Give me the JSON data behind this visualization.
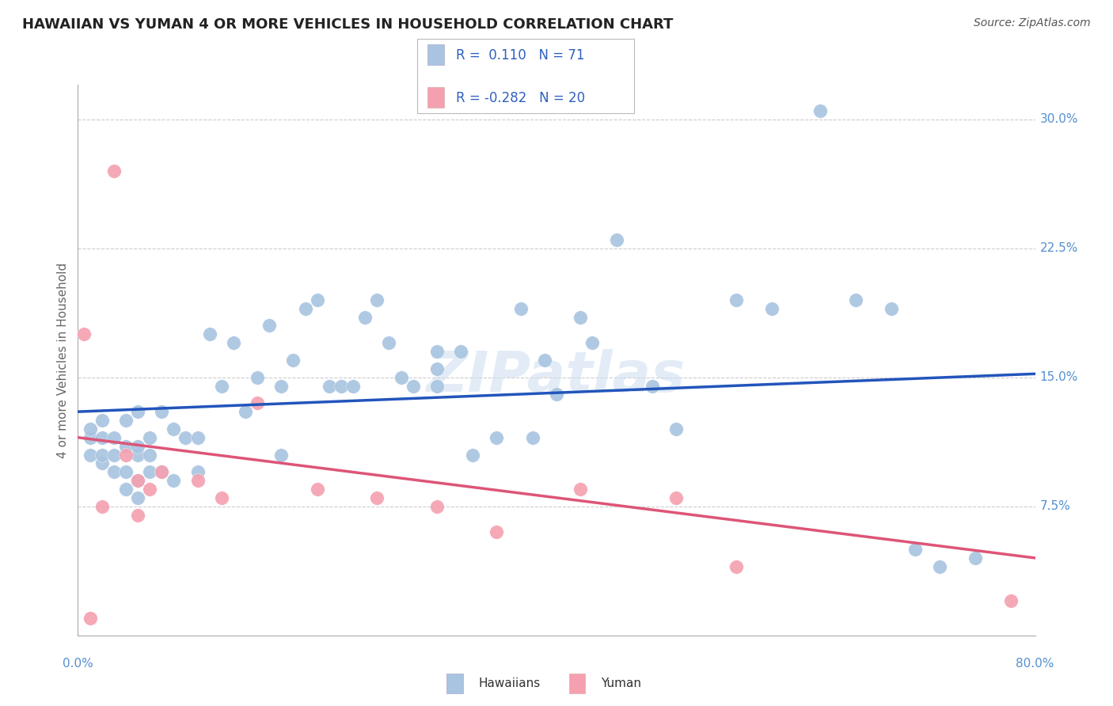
{
  "title": "HAWAIIAN VS YUMAN 4 OR MORE VEHICLES IN HOUSEHOLD CORRELATION CHART",
  "source": "Source: ZipAtlas.com",
  "ylabel": "4 or more Vehicles in Household",
  "ytick_values": [
    0.0,
    7.5,
    15.0,
    22.5,
    30.0
  ],
  "xlim": [
    0.0,
    80.0
  ],
  "ylim": [
    0.0,
    32.0
  ],
  "hawaiian_R": "0.110",
  "hawaiian_N": "71",
  "yuman_R": "-0.282",
  "yuman_N": "20",
  "hawaiian_color": "#a8c4e0",
  "yuman_color": "#f4a0b0",
  "trendline_hawaiian_color": "#2255bb",
  "trendline_yuman_color": "#dd5577",
  "watermark": "ZIPatlas",
  "hawaiian_x": [
    1,
    1,
    1,
    2,
    2,
    2,
    2,
    3,
    3,
    3,
    4,
    4,
    4,
    4,
    5,
    5,
    5,
    5,
    5,
    6,
    6,
    6,
    7,
    7,
    8,
    8,
    9,
    10,
    10,
    11,
    12,
    13,
    14,
    15,
    16,
    17,
    17,
    18,
    19,
    20,
    21,
    22,
    23,
    24,
    25,
    26,
    27,
    28,
    30,
    30,
    30,
    32,
    33,
    35,
    37,
    38,
    39,
    40,
    42,
    43,
    45,
    48,
    50,
    55,
    58,
    62,
    65,
    68,
    70,
    72,
    75
  ],
  "hawaiian_y": [
    10.5,
    11.5,
    12.0,
    10.0,
    10.5,
    11.5,
    12.5,
    9.5,
    10.5,
    11.5,
    8.5,
    9.5,
    11.0,
    12.5,
    8.0,
    9.0,
    10.5,
    11.0,
    13.0,
    9.5,
    10.5,
    11.5,
    9.5,
    13.0,
    9.0,
    12.0,
    11.5,
    9.5,
    11.5,
    17.5,
    14.5,
    17.0,
    13.0,
    15.0,
    18.0,
    10.5,
    14.5,
    16.0,
    19.0,
    19.5,
    14.5,
    14.5,
    14.5,
    18.5,
    19.5,
    17.0,
    15.0,
    14.5,
    14.5,
    15.5,
    16.5,
    16.5,
    10.5,
    11.5,
    19.0,
    11.5,
    16.0,
    14.0,
    18.5,
    17.0,
    23.0,
    14.5,
    12.0,
    19.5,
    19.0,
    30.5,
    19.5,
    19.0,
    5.0,
    4.0,
    4.5
  ],
  "yuman_x": [
    0.5,
    1,
    2,
    3,
    4,
    5,
    5,
    6,
    7,
    10,
    12,
    15,
    20,
    25,
    30,
    35,
    42,
    50,
    55,
    78
  ],
  "yuman_y": [
    17.5,
    1.0,
    7.5,
    27.0,
    10.5,
    9.0,
    7.0,
    8.5,
    9.5,
    9.0,
    8.0,
    13.5,
    8.5,
    8.0,
    7.5,
    6.0,
    8.5,
    8.0,
    4.0,
    2.0
  ],
  "trendline_h_x0": 0,
  "trendline_h_y0": 13.0,
  "trendline_h_x1": 80,
  "trendline_h_y1": 15.2,
  "trendline_y_x0": 0,
  "trendline_y_y0": 11.5,
  "trendline_y_x1": 80,
  "trendline_y_y1": 4.5
}
